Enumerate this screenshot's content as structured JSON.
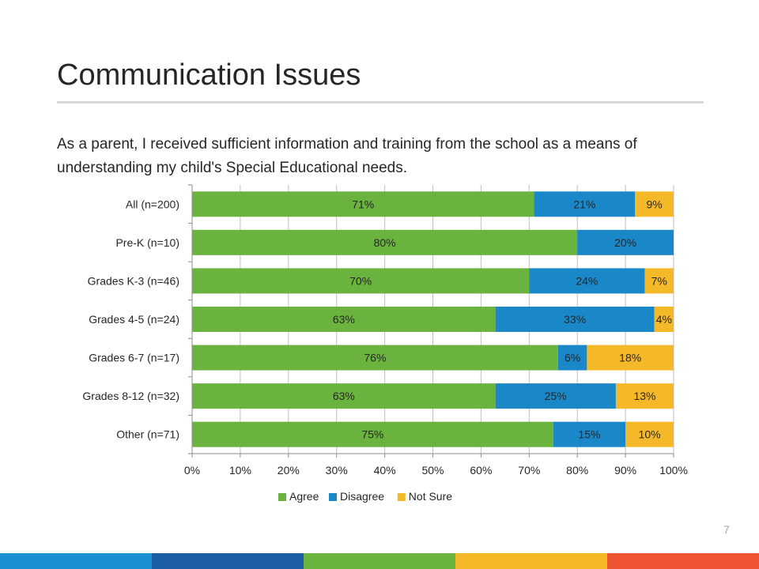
{
  "slide": {
    "title": "Communication Issues",
    "question": "As a parent, I received sufficient information and training from the school as a means of understanding my child's Special Educational needs.",
    "page_number": "7"
  },
  "footer": {
    "colors": [
      "#1b91d3",
      "#1c5ea3",
      "#6ab33e",
      "#f5b829",
      "#ee5432"
    ]
  },
  "chart_data": {
    "type": "bar",
    "orientation": "horizontal",
    "stacked": true,
    "categories": [
      "All (n=200)",
      "Pre-K (n=10)",
      "Grades K-3 (n=46)",
      "Grades 4-5 (n=24)",
      "Grades 6-7 (n=17)",
      "Grades 8-12 (n=32)",
      "Other (n=71)"
    ],
    "series": [
      {
        "name": "Agree",
        "color": "#6ab33e",
        "values": [
          71,
          80,
          70,
          63,
          76,
          63,
          75
        ],
        "labels": [
          "71%",
          "80%",
          "70%",
          "63%",
          "76%",
          "63%",
          "75%"
        ]
      },
      {
        "name": "Disagree",
        "color": "#1a87c9",
        "values": [
          21,
          20,
          24,
          33,
          6,
          25,
          15
        ],
        "labels": [
          "21%",
          "20%",
          "24%",
          "33%",
          "6%",
          "25%",
          "15%"
        ]
      },
      {
        "name": "Not Sure",
        "color": "#f5b829",
        "values": [
          9,
          0,
          7,
          4,
          18,
          13,
          10
        ],
        "labels": [
          "9%",
          "",
          "7%",
          "4%",
          "18%",
          "13%",
          "10%"
        ]
      }
    ],
    "xlim": [
      0,
      100
    ],
    "x_ticks": [
      "0%",
      "10%",
      "20%",
      "30%",
      "40%",
      "50%",
      "60%",
      "70%",
      "80%",
      "90%",
      "100%"
    ],
    "grid": true,
    "legend": "bottom",
    "title": "",
    "xlabel": "",
    "ylabel": ""
  }
}
